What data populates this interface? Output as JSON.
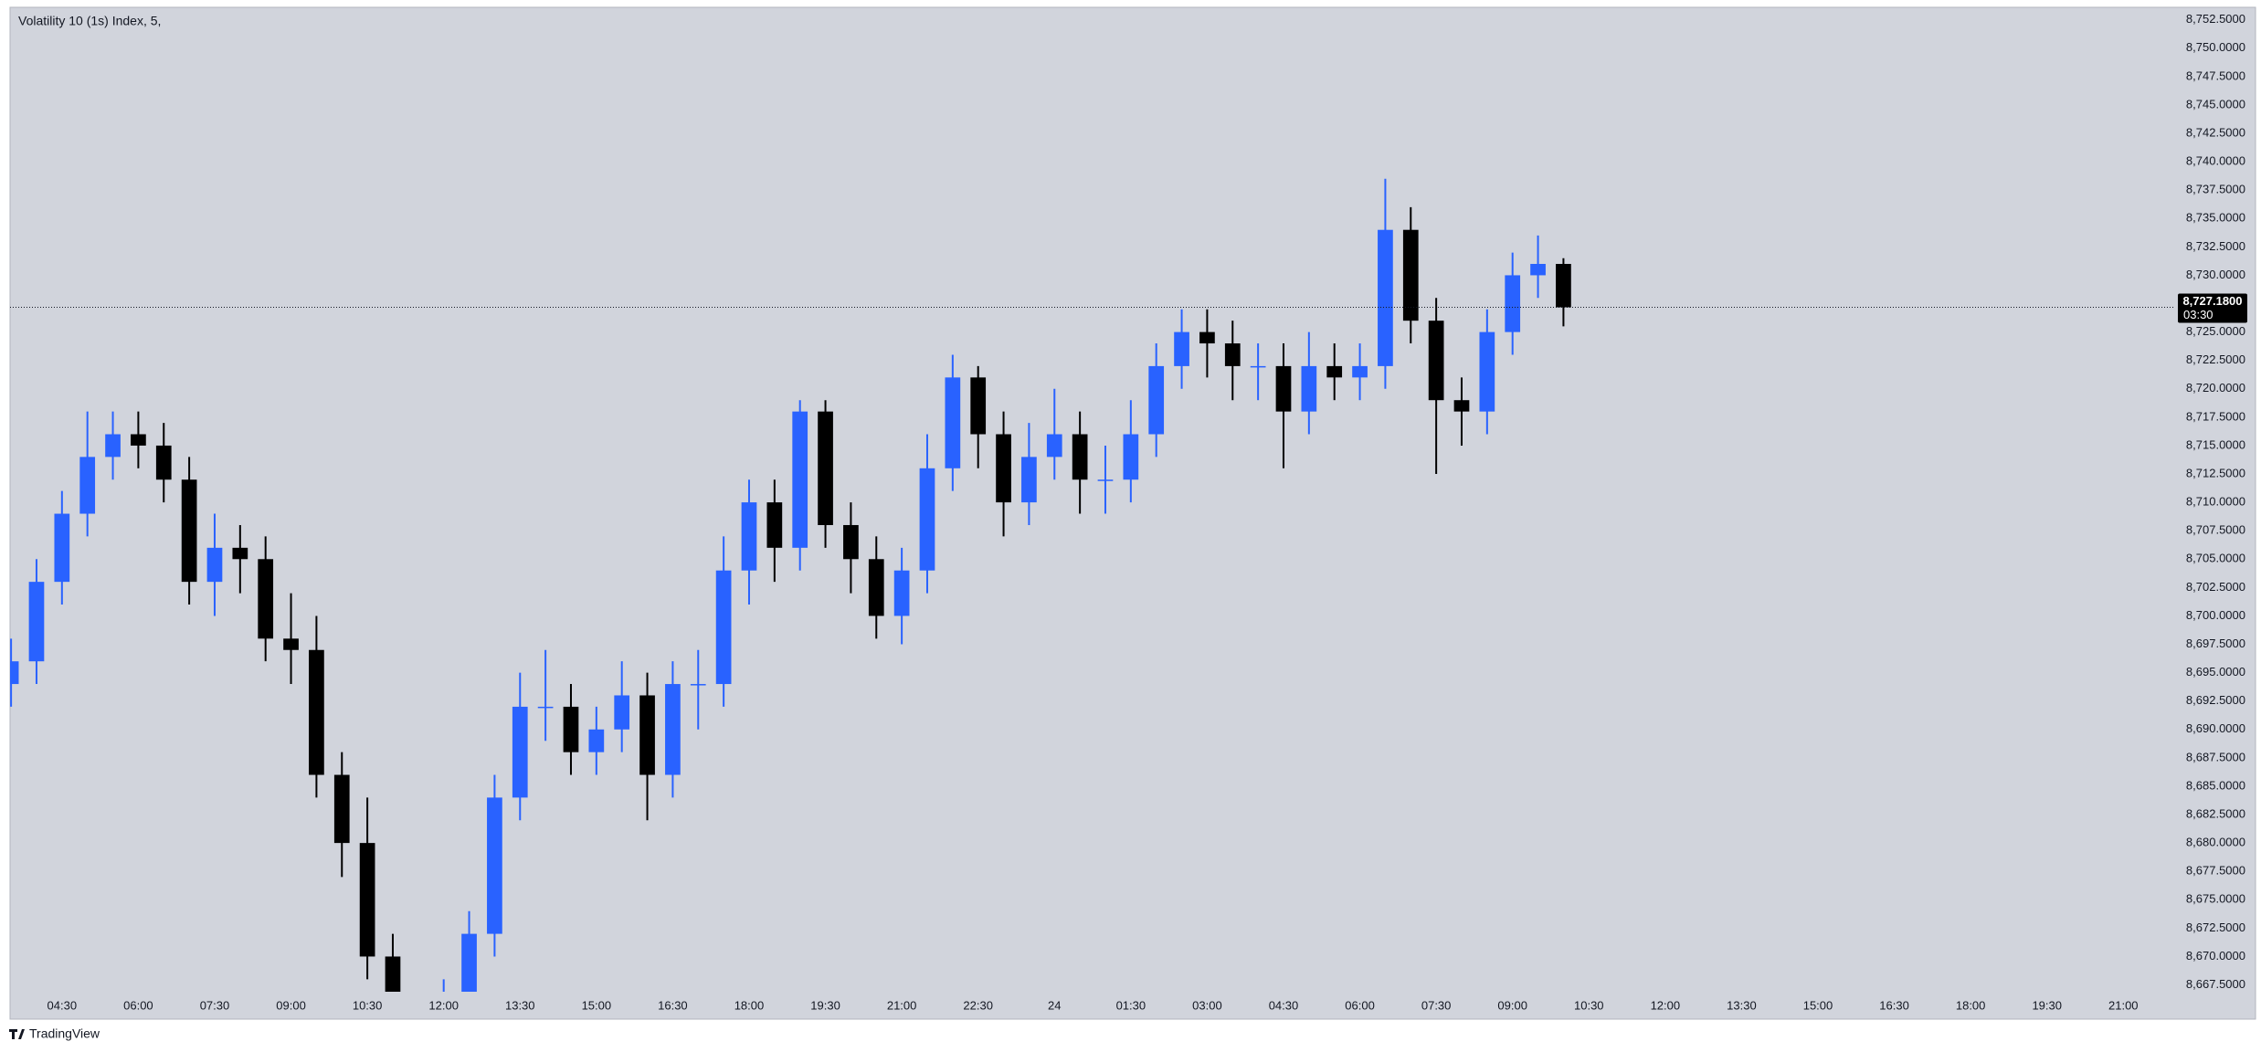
{
  "chart_data": {
    "type": "candlestick",
    "title": "Volatility 10 (1s) Index, 5,",
    "brand": "TradingView",
    "up_color": "#2962ff",
    "down_color": "#000000",
    "grid": true,
    "last_price": {
      "value": 8727.18,
      "label": "8,727.1800"
    },
    "countdown": "03:30",
    "xlim": [
      3.48,
      46.0
    ],
    "ylim": [
      8666.9,
      8753.6
    ],
    "xticks": [
      {
        "value": 4.5,
        "label": "04:30"
      },
      {
        "value": 6,
        "label": "06:00"
      },
      {
        "value": 7.5,
        "label": "07:30"
      },
      {
        "value": 9,
        "label": "09:00"
      },
      {
        "value": 10.5,
        "label": "10:30"
      },
      {
        "value": 12,
        "label": "12:00"
      },
      {
        "value": 13.5,
        "label": "13:30"
      },
      {
        "value": 15,
        "label": "15:00"
      },
      {
        "value": 16.5,
        "label": "16:30"
      },
      {
        "value": 18,
        "label": "18:00"
      },
      {
        "value": 19.5,
        "label": "19:30"
      },
      {
        "value": 21,
        "label": "21:00"
      },
      {
        "value": 22.5,
        "label": "22:30"
      },
      24,
      {
        "value": 25.5,
        "label": "01:30"
      },
      {
        "value": 27,
        "label": "03:00"
      },
      {
        "value": 28.5,
        "label": "04:30"
      },
      {
        "value": 30,
        "label": "06:00"
      },
      {
        "value": 31.5,
        "label": "07:30"
      },
      {
        "value": 33,
        "label": "09:00"
      },
      {
        "value": 34.5,
        "label": "10:30"
      },
      {
        "value": 36,
        "label": "12:00"
      },
      {
        "value": 37.5,
        "label": "13:30"
      },
      {
        "value": 39,
        "label": "15:00"
      },
      {
        "value": 40.5,
        "label": "16:30"
      },
      {
        "value": 42,
        "label": "18:00"
      },
      {
        "value": 43.5,
        "label": "19:30"
      },
      {
        "value": 45,
        "label": "21:00"
      }
    ],
    "yticks": [
      {
        "value": 8667.5,
        "label": "8,667.5000"
      },
      {
        "value": 8670,
        "label": "8,670.0000"
      },
      {
        "value": 8672.5,
        "label": "8,672.5000"
      },
      {
        "value": 8675,
        "label": "8,675.0000"
      },
      {
        "value": 8677.5,
        "label": "8,677.5000"
      },
      {
        "value": 8680,
        "label": "8,680.0000"
      },
      {
        "value": 8682.5,
        "label": "8,682.5000"
      },
      {
        "value": 8685,
        "label": "8,685.0000"
      },
      {
        "value": 8687.5,
        "label": "8,687.5000"
      },
      {
        "value": 8690,
        "label": "8,690.0000"
      },
      {
        "value": 8692.5,
        "label": "8,692.5000"
      },
      {
        "value": 8695,
        "label": "8,695.0000"
      },
      {
        "value": 8697.5,
        "label": "8,697.5000"
      },
      {
        "value": 8700,
        "label": "8,700.0000"
      },
      {
        "value": 8702.5,
        "label": "8,702.5000"
      },
      {
        "value": 8705,
        "label": "8,705.0000"
      },
      {
        "value": 8707.5,
        "label": "8,707.5000"
      },
      {
        "value": 8710,
        "label": "8,710.0000"
      },
      {
        "value": 8712.5,
        "label": "8,712.5000"
      },
      {
        "value": 8715,
        "label": "8,715.0000"
      },
      {
        "value": 8717.5,
        "label": "8,717.5000"
      },
      {
        "value": 8720,
        "label": "8,720.0000"
      },
      {
        "value": 8722.5,
        "label": "8,722.5000"
      },
      {
        "value": 8725,
        "label": "8,725.0000"
      },
      {
        "value": 8730,
        "label": "8,730.0000"
      },
      {
        "value": 8732.5,
        "label": "8,732.5000"
      },
      {
        "value": 8735,
        "label": "8,735.0000"
      },
      {
        "value": 8737.5,
        "label": "8,737.5000"
      },
      {
        "value": 8740,
        "label": "8,740.0000"
      },
      {
        "value": 8742.5,
        "label": "8,742.5000"
      },
      {
        "value": 8745,
        "label": "8,745.0000"
      },
      {
        "value": 8747.5,
        "label": "8,747.5000"
      },
      {
        "value": 8750,
        "label": "8,750.0000"
      },
      {
        "value": 8752.5,
        "label": "8,752.5000"
      }
    ],
    "x": [
      3.5,
      4,
      4.5,
      5,
      5.5,
      6,
      6.5,
      7,
      7.5,
      8,
      8.5,
      9,
      9.5,
      10,
      10.5,
      11,
      11.5,
      12,
      12.5,
      13,
      13.5,
      14,
      14.5,
      15,
      15.5,
      16,
      16.5,
      17,
      17.5,
      18,
      18.5,
      19,
      19.5,
      20,
      20.5,
      21,
      21.5,
      22,
      22.5,
      23,
      23.5,
      24,
      24.5,
      25,
      25.5,
      26,
      26.5,
      27,
      27.5,
      28,
      28.5,
      29,
      29.5,
      30,
      30.5,
      31,
      31.5,
      32,
      32.5,
      33,
      33.5,
      34
    ],
    "open": [
      8694,
      8696,
      8703,
      8709,
      8714,
      8716,
      8715,
      8712,
      8703,
      8706,
      8705,
      8698,
      8697,
      8686,
      8680,
      8670,
      8660,
      8662,
      8666,
      8672,
      8684,
      8692,
      8692,
      8688,
      8690,
      8693,
      8686,
      8694,
      8694,
      8704,
      8710,
      8706,
      8718,
      8708,
      8705,
      8700,
      8704,
      8713,
      8721,
      8716,
      8710,
      8714,
      8716,
      8712,
      8712,
      8716,
      8722,
      8725,
      8724,
      8722,
      8722,
      8718,
      8722,
      8721,
      8722,
      8734,
      8726,
      8719,
      8718,
      8725,
      8730,
      8731
    ],
    "high": [
      8698,
      8705,
      8711,
      8718,
      8718,
      8718,
      8717,
      8714,
      8709,
      8708,
      8707,
      8702,
      8700,
      8688,
      8684,
      8672,
      8664,
      8668,
      8674,
      8686,
      8695,
      8697,
      8694,
      8692,
      8696,
      8695,
      8696,
      8697,
      8707,
      8712,
      8712,
      8719,
      8719,
      8710,
      8707,
      8706,
      8716,
      8723,
      8722,
      8718,
      8717,
      8720,
      8718,
      8715,
      8719,
      8724,
      8727,
      8727,
      8726,
      8724,
      8724,
      8725,
      8724,
      8724,
      8738.5,
      8736,
      8728,
      8721,
      8727,
      8732,
      8733.5,
      8731.5
    ],
    "low": [
      8692,
      8694,
      8701,
      8707,
      8712,
      8713,
      8710,
      8701,
      8700,
      8702,
      8696,
      8694,
      8684,
      8677,
      8668,
      8658,
      8658,
      8660,
      8664,
      8670,
      8682,
      8689,
      8686,
      8686,
      8688,
      8682,
      8684,
      8690,
      8692,
      8701,
      8703,
      8704,
      8706,
      8702,
      8698,
      8697.5,
      8702,
      8711,
      8713,
      8707,
      8708,
      8712,
      8709,
      8709,
      8710,
      8714,
      8720,
      8721,
      8719,
      8719,
      8713,
      8716,
      8719,
      8719,
      8720,
      8724,
      8712.5,
      8715,
      8716,
      8723,
      8728,
      8725.5
    ],
    "close": [
      8696,
      8703,
      8709,
      8714,
      8716,
      8715,
      8712,
      8703,
      8706,
      8705,
      8698,
      8697,
      8686,
      8680,
      8670,
      8660,
      8662,
      8666,
      8672,
      8684,
      8692,
      8692,
      8688,
      8690,
      8693,
      8686,
      8694,
      8694,
      8704,
      8710,
      8706,
      8718,
      8708,
      8705,
      8700,
      8704,
      8713,
      8721,
      8716,
      8710,
      8714,
      8716,
      8712,
      8712,
      8716,
      8722,
      8725,
      8724,
      8722,
      8722,
      8718,
      8722,
      8721,
      8722,
      8734,
      8726,
      8719,
      8718,
      8725,
      8730,
      8731,
      8727.18
    ]
  }
}
